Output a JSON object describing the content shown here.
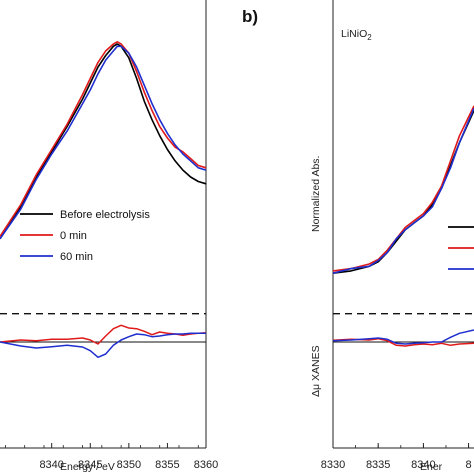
{
  "chart_data": [
    {
      "panel": "a",
      "type": "line",
      "xlabel": "Energy / eV",
      "ylabel": "",
      "xlim": [
        8333.3,
        8360
      ],
      "x_ticks": [
        "8340",
        "8345",
        "8350",
        "8355",
        "8360"
      ],
      "legend": {
        "placement": "center-left",
        "entries": [
          "Before electrolysis",
          "0 min",
          "60 min"
        ]
      },
      "top": {
        "ylim": [
          -0.1,
          1.1
        ],
        "series": [
          {
            "name": "Before electrolysis",
            "color": "#000000",
            "x": [
              8333.3,
              8336,
              8338,
              8340,
              8342,
              8344,
              8345,
              8346,
              8347,
              8348,
              8348.5,
              8349,
              8350,
              8351,
              8352,
              8353,
              8354,
              8355,
              8356,
              8357,
              8358,
              8359,
              8360
            ],
            "y": [
              0.18,
              0.32,
              0.45,
              0.56,
              0.67,
              0.79,
              0.86,
              0.93,
              0.98,
              1.02,
              1.03,
              1.02,
              0.97,
              0.88,
              0.78,
              0.7,
              0.63,
              0.57,
              0.52,
              0.48,
              0.45,
              0.43,
              0.42
            ]
          },
          {
            "name": "0 min",
            "color": "#e01a1a",
            "x": [
              8333.3,
              8336,
              8338,
              8340,
              8342,
              8344,
              8345,
              8346,
              8347,
              8348,
              8348.5,
              8349,
              8350,
              8351,
              8352,
              8353,
              8354,
              8355,
              8356,
              8357,
              8358,
              8359,
              8360
            ],
            "y": [
              0.19,
              0.33,
              0.46,
              0.57,
              0.68,
              0.81,
              0.88,
              0.95,
              1.0,
              1.03,
              1.04,
              1.03,
              0.99,
              0.91,
              0.82,
              0.74,
              0.67,
              0.62,
              0.58,
              0.56,
              0.53,
              0.5,
              0.49
            ]
          },
          {
            "name": "60 min",
            "color": "#1f2fcf",
            "x": [
              8333.3,
              8336,
              8338,
              8340,
              8342,
              8344,
              8345,
              8346,
              8347,
              8348,
              8348.5,
              8349,
              8350,
              8351,
              8352,
              8353,
              8354,
              8355,
              8356,
              8357,
              8358,
              8359,
              8360
            ],
            "y": [
              0.18,
              0.31,
              0.44,
              0.55,
              0.65,
              0.77,
              0.83,
              0.9,
              0.96,
              1.0,
              1.02,
              1.02,
              0.99,
              0.93,
              0.85,
              0.77,
              0.7,
              0.64,
              0.59,
              0.55,
              0.52,
              0.49,
              0.48
            ]
          }
        ]
      },
      "bottom": {
        "ylim": [
          -0.12,
          0.12
        ],
        "reference_line": 0,
        "dashed_line": 0.085,
        "series": [
          {
            "name": "0 min",
            "color": "#e01a1a",
            "x": [
              8333.3,
              8336,
              8338,
              8340,
              8342,
              8344,
              8345,
              8346,
              8347,
              8348,
              8349,
              8350,
              8351,
              8352,
              8353,
              8354,
              8355,
              8356,
              8357,
              8358,
              8359,
              8360
            ],
            "y": [
              0.0,
              0.006,
              0.004,
              0.008,
              0.008,
              0.012,
              0.006,
              -0.006,
              0.018,
              0.04,
              0.05,
              0.042,
              0.04,
              0.032,
              0.022,
              0.03,
              0.026,
              0.024,
              0.02,
              0.024,
              0.026,
              0.028
            ]
          },
          {
            "name": "60 min",
            "color": "#1f2fcf",
            "x": [
              8333.3,
              8336,
              8338,
              8340,
              8342,
              8344,
              8345,
              8346,
              8347,
              8348,
              8349,
              8350,
              8351,
              8352,
              8353,
              8354,
              8355,
              8356,
              8357,
              8358,
              8359,
              8360
            ],
            "y": [
              0.0,
              -0.012,
              -0.018,
              -0.014,
              -0.01,
              -0.015,
              -0.026,
              -0.046,
              -0.036,
              -0.01,
              0.006,
              0.016,
              0.024,
              0.022,
              0.016,
              0.018,
              0.022,
              0.024,
              0.024,
              0.026,
              0.026,
              0.026
            ]
          }
        ]
      }
    },
    {
      "panel": "b",
      "type": "line",
      "title": "LiNiO2",
      "xlabel": "Ener",
      "ylabel": "Normalized Abs.",
      "ylabel_bottom": "Δμ XANES",
      "xlim": [
        8330,
        8345.6
      ],
      "x_ticks": [
        "8330",
        "8335",
        "8340",
        "8"
      ],
      "top": {
        "ylim": [
          -0.1,
          1.1
        ],
        "series": [
          {
            "name": "Before electrolysis",
            "color": "#000000",
            "x": [
              8330,
              8332,
              8334,
              8335,
              8336,
              8337,
              8338,
              8339,
              8340,
              8341,
              8342,
              8343,
              8344,
              8345.6
            ],
            "y": [
              0.03,
              0.04,
              0.06,
              0.08,
              0.12,
              0.17,
              0.22,
              0.25,
              0.28,
              0.33,
              0.4,
              0.5,
              0.6,
              0.74
            ]
          },
          {
            "name": "0 min",
            "color": "#e01a1a",
            "x": [
              8330,
              8332,
              8334,
              8335,
              8336,
              8337,
              8338,
              8339,
              8340,
              8341,
              8342,
              8343,
              8344,
              8345.6
            ],
            "y": [
              0.04,
              0.05,
              0.07,
              0.09,
              0.13,
              0.18,
              0.23,
              0.26,
              0.29,
              0.34,
              0.41,
              0.52,
              0.63,
              0.76
            ]
          },
          {
            "name": "60 min",
            "color": "#1f2fcf",
            "x": [
              8330,
              8332,
              8334,
              8335,
              8336,
              8337,
              8338,
              8339,
              8340,
              8341,
              8342,
              8343,
              8344,
              8345.6
            ],
            "y": [
              0.03,
              0.05,
              0.06,
              0.085,
              0.12,
              0.18,
              0.22,
              0.25,
              0.28,
              0.32,
              0.4,
              0.49,
              0.6,
              0.75
            ]
          }
        ]
      },
      "bottom": {
        "ylim": [
          -0.12,
          0.12
        ],
        "reference_line": 0,
        "dashed_line": 0.085,
        "series": [
          {
            "name": "0 min",
            "color": "#e01a1a",
            "x": [
              8330,
              8332,
              8334,
              8335,
              8336,
              8337,
              8338,
              8339,
              8340,
              8341,
              8342,
              8343,
              8344,
              8345.6
            ],
            "y": [
              0.005,
              0.008,
              0.006,
              0.01,
              0.004,
              -0.01,
              -0.012,
              -0.008,
              -0.006,
              -0.008,
              -0.004,
              -0.01,
              -0.006,
              -0.004
            ]
          },
          {
            "name": "60 min",
            "color": "#1f2fcf",
            "x": [
              8330,
              8332,
              8334,
              8335,
              8336,
              8337,
              8338,
              8339,
              8340,
              8341,
              8342,
              8343,
              8344,
              8345.6
            ],
            "y": [
              0.004,
              0.006,
              0.01,
              0.012,
              0.008,
              -0.004,
              -0.006,
              -0.004,
              -0.002,
              0.0,
              0.0,
              0.014,
              0.026,
              0.036
            ]
          }
        ]
      }
    }
  ],
  "labels": {
    "panel_b_letter": "b)",
    "panel_b_title_main": "LiNiO",
    "panel_b_title_sub": "2"
  }
}
